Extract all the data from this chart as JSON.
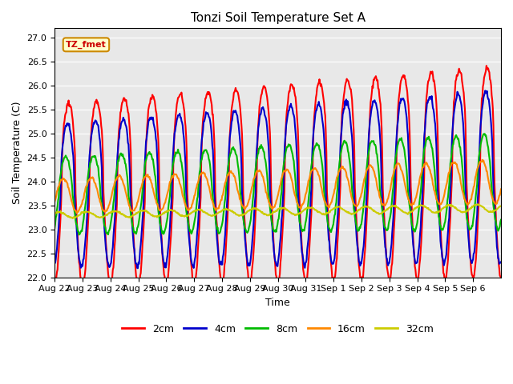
{
  "title": "Tonzi Soil Temperature Set A",
  "xlabel": "Time",
  "ylabel": "Soil Temperature (C)",
  "ylim": [
    22.0,
    27.2
  ],
  "yticks": [
    22.0,
    22.5,
    23.0,
    23.5,
    24.0,
    24.5,
    25.0,
    25.5,
    26.0,
    26.5,
    27.0
  ],
  "annotation": "TZ_fmet",
  "series_colors": [
    "#ff0000",
    "#0000cc",
    "#00bb00",
    "#ff8800",
    "#cccc00"
  ],
  "series_labels": [
    "2cm",
    "4cm",
    "8cm",
    "16cm",
    "32cm"
  ],
  "background_color": "#e8e8e8",
  "line_width": 1.5,
  "xtick_labels": [
    "Aug 22",
    "Aug 23",
    "Aug 24",
    "Aug 25",
    "Aug 26",
    "Aug 27",
    "Aug 28",
    "Aug 29",
    "Aug 30",
    "Aug 31",
    "Sep 1",
    "Sep 2",
    "Sep 3",
    "Sep 4",
    "Sep 5",
    "Sep 6"
  ]
}
